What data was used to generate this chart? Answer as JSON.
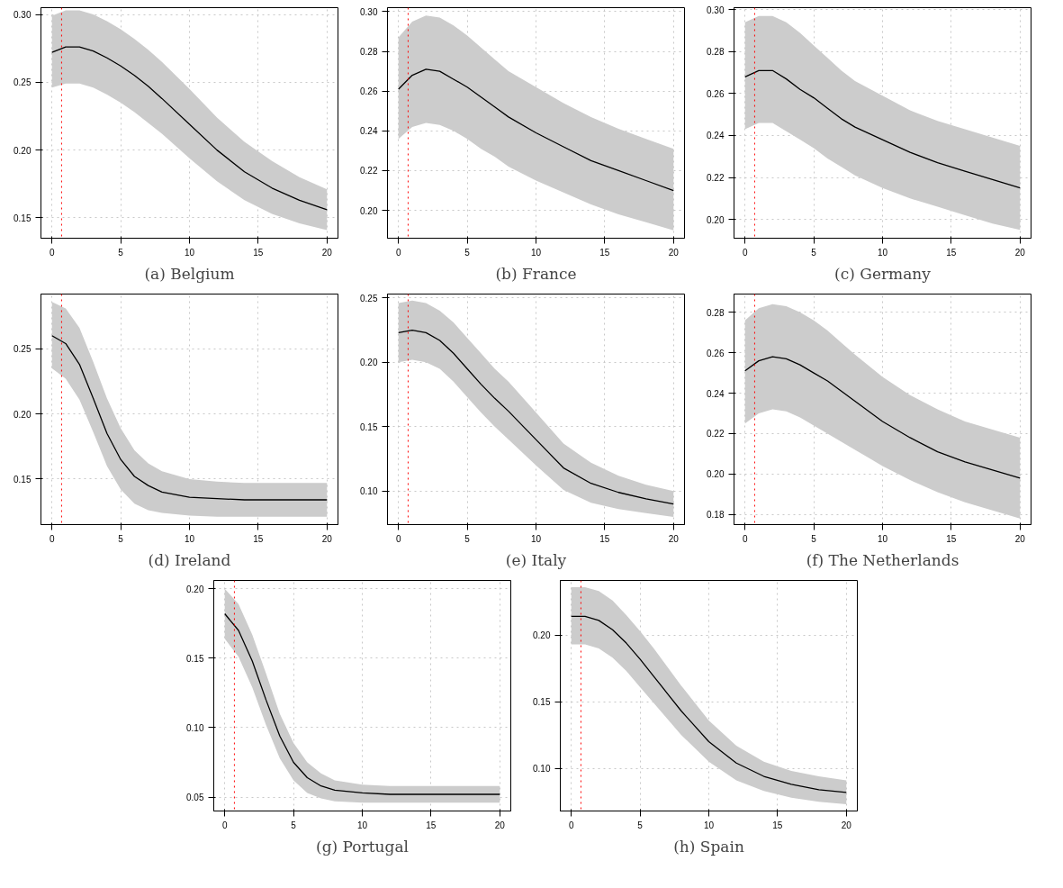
{
  "chart_data": [
    {
      "type": "line",
      "title": "(a) Belgium",
      "x": [
        0,
        1,
        2,
        3,
        4,
        5,
        6,
        7,
        8,
        10,
        12,
        14,
        16,
        18,
        20
      ],
      "xlim": [
        -0.8,
        20.8
      ],
      "xticks": [
        0,
        5,
        10,
        15,
        20
      ],
      "ylim": [
        0.135,
        0.305
      ],
      "yticks": [
        {
          "value": 0.15,
          "label": "0.15"
        },
        {
          "value": 0.2,
          "label": "0.20"
        },
        {
          "value": 0.25,
          "label": "0.25"
        },
        {
          "value": 0.3,
          "label": "0.30"
        }
      ],
      "grid": true,
      "ref_lines": [
        {
          "axis": "x",
          "value": 0.7,
          "color": "#ff0000",
          "line_style": "dotted"
        }
      ],
      "series": [
        {
          "color": "#000000",
          "values": [
            0.272,
            0.276,
            0.276,
            0.273,
            0.268,
            0.262,
            0.255,
            0.247,
            0.238,
            0.219,
            0.2,
            0.184,
            0.172,
            0.163,
            0.156
          ],
          "upper": [
            0.299,
            0.303,
            0.303,
            0.3,
            0.295,
            0.289,
            0.282,
            0.274,
            0.265,
            0.245,
            0.224,
            0.206,
            0.192,
            0.18,
            0.171
          ],
          "lower": [
            0.246,
            0.249,
            0.249,
            0.246,
            0.241,
            0.235,
            0.228,
            0.22,
            0.212,
            0.194,
            0.177,
            0.163,
            0.153,
            0.146,
            0.141
          ]
        }
      ]
    },
    {
      "type": "line",
      "title": "(b) France",
      "x": [
        0,
        1,
        2,
        3,
        4,
        5,
        6,
        7,
        8,
        10,
        12,
        14,
        16,
        18,
        20
      ],
      "xlim": [
        -0.8,
        20.8
      ],
      "xticks": [
        0,
        5,
        10,
        15,
        20
      ],
      "ylim": [
        0.186,
        0.302
      ],
      "yticks": [
        {
          "value": 0.2,
          "label": "0.20"
        },
        {
          "value": 0.22,
          "label": "0.22"
        },
        {
          "value": 0.24,
          "label": "0.24"
        },
        {
          "value": 0.26,
          "label": "0.26"
        },
        {
          "value": 0.28,
          "label": "0.28"
        },
        {
          "value": 0.3,
          "label": "0.30"
        }
      ],
      "grid": true,
      "ref_lines": [
        {
          "axis": "x",
          "value": 0.7,
          "color": "#ff0000",
          "line_style": "dotted"
        }
      ],
      "series": [
        {
          "color": "#000000",
          "values": [
            0.261,
            0.268,
            0.271,
            0.27,
            0.266,
            0.262,
            0.257,
            0.252,
            0.247,
            0.239,
            0.232,
            0.225,
            0.22,
            0.215,
            0.21
          ],
          "upper": [
            0.287,
            0.295,
            0.298,
            0.297,
            0.293,
            0.288,
            0.282,
            0.276,
            0.27,
            0.262,
            0.254,
            0.247,
            0.241,
            0.236,
            0.231
          ],
          "lower": [
            0.236,
            0.242,
            0.244,
            0.243,
            0.24,
            0.236,
            0.231,
            0.227,
            0.222,
            0.215,
            0.209,
            0.203,
            0.198,
            0.194,
            0.19
          ]
        }
      ]
    },
    {
      "type": "line",
      "title": "(c) Germany",
      "x": [
        0,
        1,
        2,
        3,
        4,
        5,
        6,
        7,
        8,
        10,
        12,
        14,
        16,
        18,
        20
      ],
      "xlim": [
        -0.8,
        20.8
      ],
      "xticks": [
        0,
        5,
        10,
        15,
        20
      ],
      "ylim": [
        0.191,
        0.301
      ],
      "yticks": [
        {
          "value": 0.2,
          "label": "0.20"
        },
        {
          "value": 0.22,
          "label": "0.22"
        },
        {
          "value": 0.24,
          "label": "0.24"
        },
        {
          "value": 0.26,
          "label": "0.26"
        },
        {
          "value": 0.28,
          "label": "0.28"
        },
        {
          "value": 0.3,
          "label": "0.30"
        }
      ],
      "grid": true,
      "ref_lines": [
        {
          "axis": "x",
          "value": 0.7,
          "color": "#ff0000",
          "line_style": "dotted"
        }
      ],
      "series": [
        {
          "color": "#000000",
          "values": [
            0.268,
            0.271,
            0.271,
            0.267,
            0.262,
            0.258,
            0.253,
            0.248,
            0.244,
            0.238,
            0.232,
            0.227,
            0.223,
            0.219,
            0.215
          ],
          "upper": [
            0.294,
            0.297,
            0.297,
            0.294,
            0.289,
            0.283,
            0.277,
            0.271,
            0.266,
            0.259,
            0.252,
            0.247,
            0.243,
            0.239,
            0.235
          ],
          "lower": [
            0.243,
            0.246,
            0.246,
            0.242,
            0.238,
            0.234,
            0.229,
            0.225,
            0.221,
            0.215,
            0.21,
            0.206,
            0.202,
            0.198,
            0.195
          ]
        }
      ]
    },
    {
      "type": "line",
      "title": "(d) Ireland",
      "x": [
        0,
        1,
        2,
        3,
        4,
        5,
        6,
        7,
        8,
        10,
        12,
        14,
        16,
        18,
        20
      ],
      "xlim": [
        -0.8,
        20.8
      ],
      "xticks": [
        0,
        5,
        10,
        15,
        20
      ],
      "ylim": [
        0.115,
        0.292
      ],
      "yticks": [
        {
          "value": 0.15,
          "label": "0.15"
        },
        {
          "value": 0.2,
          "label": "0.20"
        },
        {
          "value": 0.25,
          "label": "0.25"
        }
      ],
      "grid": true,
      "ref_lines": [
        {
          "axis": "x",
          "value": 0.7,
          "color": "#ff0000",
          "line_style": "dotted"
        }
      ],
      "series": [
        {
          "color": "#000000",
          "values": [
            0.26,
            0.254,
            0.238,
            0.212,
            0.185,
            0.165,
            0.152,
            0.145,
            0.14,
            0.136,
            0.135,
            0.134,
            0.134,
            0.134,
            0.134
          ],
          "upper": [
            0.286,
            0.281,
            0.266,
            0.24,
            0.212,
            0.189,
            0.172,
            0.162,
            0.156,
            0.15,
            0.148,
            0.147,
            0.147,
            0.147,
            0.147
          ],
          "lower": [
            0.235,
            0.227,
            0.211,
            0.186,
            0.16,
            0.142,
            0.131,
            0.126,
            0.124,
            0.122,
            0.121,
            0.121,
            0.121,
            0.121,
            0.121
          ]
        }
      ]
    },
    {
      "type": "line",
      "title": "(e) Italy",
      "x": [
        0,
        1,
        2,
        3,
        4,
        5,
        6,
        7,
        8,
        10,
        12,
        14,
        16,
        18,
        20
      ],
      "xlim": [
        -0.8,
        20.8
      ],
      "xticks": [
        0,
        5,
        10,
        15,
        20
      ],
      "ylim": [
        0.074,
        0.253
      ],
      "yticks": [
        {
          "value": 0.1,
          "label": "0.10"
        },
        {
          "value": 0.15,
          "label": "0.15"
        },
        {
          "value": 0.2,
          "label": "0.20"
        },
        {
          "value": 0.25,
          "label": "0.25"
        }
      ],
      "grid": true,
      "ref_lines": [
        {
          "axis": "x",
          "value": 0.7,
          "color": "#ff0000",
          "line_style": "dotted"
        }
      ],
      "series": [
        {
          "color": "#000000",
          "values": [
            0.223,
            0.225,
            0.223,
            0.217,
            0.207,
            0.195,
            0.183,
            0.172,
            0.162,
            0.14,
            0.118,
            0.106,
            0.099,
            0.094,
            0.09
          ],
          "upper": [
            0.246,
            0.248,
            0.246,
            0.24,
            0.231,
            0.219,
            0.207,
            0.195,
            0.185,
            0.161,
            0.137,
            0.122,
            0.112,
            0.105,
            0.1
          ],
          "lower": [
            0.2,
            0.202,
            0.2,
            0.195,
            0.185,
            0.173,
            0.161,
            0.15,
            0.14,
            0.12,
            0.101,
            0.091,
            0.086,
            0.083,
            0.08
          ]
        }
      ]
    },
    {
      "type": "line",
      "title": "(f) The Netherlands",
      "x": [
        0,
        1,
        2,
        3,
        4,
        5,
        6,
        7,
        8,
        10,
        12,
        14,
        16,
        18,
        20
      ],
      "xlim": [
        -0.8,
        20.8
      ],
      "xticks": [
        0,
        5,
        10,
        15,
        20
      ],
      "ylim": [
        0.175,
        0.289
      ],
      "yticks": [
        {
          "value": 0.18,
          "label": "0.18"
        },
        {
          "value": 0.2,
          "label": "0.20"
        },
        {
          "value": 0.22,
          "label": "0.22"
        },
        {
          "value": 0.24,
          "label": "0.24"
        },
        {
          "value": 0.26,
          "label": "0.26"
        },
        {
          "value": 0.28,
          "label": "0.28"
        }
      ],
      "grid": true,
      "ref_lines": [
        {
          "axis": "x",
          "value": 0.7,
          "color": "#ff0000",
          "line_style": "dotted"
        }
      ],
      "series": [
        {
          "color": "#000000",
          "values": [
            0.251,
            0.256,
            0.258,
            0.257,
            0.254,
            0.25,
            0.246,
            0.241,
            0.236,
            0.226,
            0.218,
            0.211,
            0.206,
            0.202,
            0.198
          ],
          "upper": [
            0.276,
            0.282,
            0.284,
            0.283,
            0.28,
            0.276,
            0.271,
            0.265,
            0.259,
            0.248,
            0.239,
            0.232,
            0.226,
            0.222,
            0.218
          ],
          "lower": [
            0.225,
            0.23,
            0.232,
            0.231,
            0.228,
            0.224,
            0.22,
            0.216,
            0.212,
            0.204,
            0.197,
            0.191,
            0.186,
            0.182,
            0.178
          ]
        }
      ]
    },
    {
      "type": "line",
      "title": "(g) Portugal",
      "x": [
        0,
        1,
        2,
        3,
        4,
        5,
        6,
        7,
        8,
        10,
        12,
        14,
        16,
        18,
        20
      ],
      "xlim": [
        -0.8,
        20.8
      ],
      "xticks": [
        0,
        5,
        10,
        15,
        20
      ],
      "ylim": [
        0.04,
        0.206
      ],
      "yticks": [
        {
          "value": 0.05,
          "label": "0.05"
        },
        {
          "value": 0.1,
          "label": "0.10"
        },
        {
          "value": 0.15,
          "label": "0.15"
        },
        {
          "value": 0.2,
          "label": "0.20"
        }
      ],
      "grid": true,
      "ref_lines": [
        {
          "axis": "x",
          "value": 0.7,
          "color": "#ff0000",
          "line_style": "dotted"
        }
      ],
      "series": [
        {
          "color": "#000000",
          "values": [
            0.182,
            0.17,
            0.148,
            0.12,
            0.094,
            0.075,
            0.064,
            0.058,
            0.055,
            0.053,
            0.052,
            0.052,
            0.052,
            0.052,
            0.052
          ],
          "upper": [
            0.2,
            0.189,
            0.167,
            0.139,
            0.11,
            0.089,
            0.075,
            0.067,
            0.062,
            0.059,
            0.058,
            0.058,
            0.058,
            0.058,
            0.058
          ],
          "lower": [
            0.164,
            0.151,
            0.129,
            0.102,
            0.078,
            0.062,
            0.053,
            0.049,
            0.047,
            0.046,
            0.046,
            0.046,
            0.046,
            0.046,
            0.046
          ]
        }
      ]
    },
    {
      "type": "line",
      "title": "(h) Spain",
      "x": [
        0,
        1,
        2,
        3,
        4,
        5,
        6,
        7,
        8,
        10,
        12,
        14,
        16,
        18,
        20
      ],
      "xlim": [
        -0.8,
        20.8
      ],
      "xticks": [
        0,
        5,
        10,
        15,
        20
      ],
      "ylim": [
        0.068,
        0.241
      ],
      "yticks": [
        {
          "value": 0.1,
          "label": "0.10"
        },
        {
          "value": 0.15,
          "label": "0.15"
        },
        {
          "value": 0.2,
          "label": "0.20"
        }
      ],
      "grid": true,
      "ref_lines": [
        {
          "axis": "x",
          "value": 0.7,
          "color": "#ff0000",
          "line_style": "dotted"
        }
      ],
      "series": [
        {
          "color": "#000000",
          "values": [
            0.214,
            0.214,
            0.211,
            0.204,
            0.194,
            0.182,
            0.169,
            0.156,
            0.143,
            0.12,
            0.104,
            0.094,
            0.088,
            0.084,
            0.082
          ],
          "upper": [
            0.236,
            0.236,
            0.233,
            0.226,
            0.215,
            0.203,
            0.19,
            0.176,
            0.162,
            0.136,
            0.117,
            0.105,
            0.098,
            0.094,
            0.091
          ],
          "lower": [
            0.193,
            0.193,
            0.19,
            0.183,
            0.173,
            0.161,
            0.149,
            0.137,
            0.125,
            0.105,
            0.091,
            0.083,
            0.078,
            0.075,
            0.073
          ]
        }
      ]
    }
  ]
}
